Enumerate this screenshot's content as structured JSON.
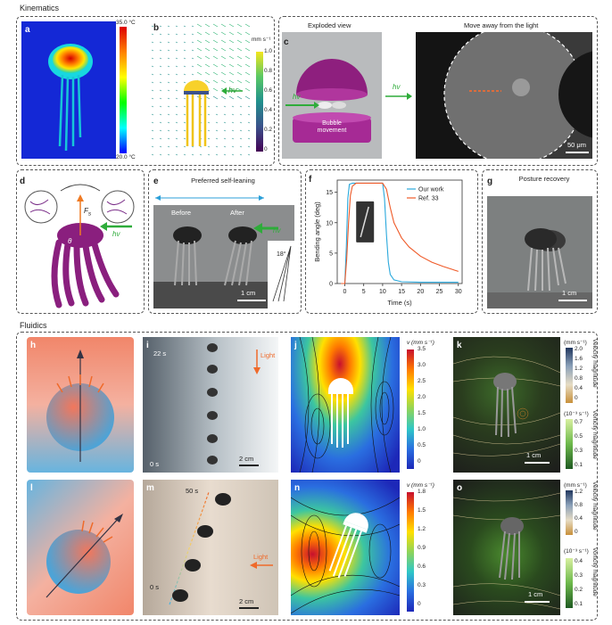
{
  "sections": {
    "kinematics": "Kinematics",
    "fluidics": "Fluidics"
  },
  "panel_letters": {
    "a": "a",
    "b": "b",
    "c": "c",
    "d": "d",
    "e": "e",
    "f": "f",
    "g": "g",
    "h": "h",
    "i": "i",
    "j": "j",
    "k": "k",
    "l": "l",
    "m": "m",
    "n": "n",
    "o": "o"
  },
  "panel_a": {
    "cbar_max": "35.0 °C",
    "cbar_min": "20.0 °C"
  },
  "panel_b": {
    "unit": "mm s⁻¹",
    "ticks": [
      "1.0",
      "0.8",
      "0.6",
      "0.4",
      "0.2",
      "0"
    ],
    "hv": "hv"
  },
  "panel_c": {
    "title_left": "Exploded view",
    "title_right": "Move away from the light",
    "hv_left": "hv",
    "hv_mid": "hv",
    "bubble_label": "Bubble movement",
    "scale": "50 μm"
  },
  "panel_d": {
    "force_label": "F",
    "force_sub": "s",
    "theta": "θ",
    "hv": "hv"
  },
  "panel_e": {
    "title": "Preferred self-leaning",
    "before": "Before",
    "after": "After",
    "hv": "hv",
    "angle": "18°",
    "scale": "1 cm"
  },
  "panel_f": {
    "ylabel": "Bending angle (deg)",
    "xlabel": "Time (s)",
    "legend": [
      "Our work",
      "Ref. 33"
    ]
  },
  "panel_g": {
    "title": "Posture recovery",
    "scale": "1 cm"
  },
  "panel_i": {
    "t_top": "22 s",
    "t_bottom": "0 s",
    "light": "Light",
    "scale": "2 cm"
  },
  "panel_j": {
    "unit": "v (mm s⁻¹)",
    "ticks": [
      "3.5",
      "3.0",
      "2.5",
      "2.0",
      "1.5",
      "1.0",
      "0.5",
      "0"
    ]
  },
  "panel_k": {
    "vel_label": "Velocity magnitude",
    "vel_unit": "(mm s⁻¹)",
    "vel_ticks": [
      "2.0",
      "1.6",
      "1.2",
      "0.8",
      "0.4",
      "0"
    ],
    "vort_label": "Vorticity magnitude",
    "vort_unit": "(10⁻³ s⁻¹)",
    "vort_ticks": [
      "0.7",
      "0.5",
      "0.3",
      "0.1"
    ],
    "scale": "1 cm"
  },
  "panel_m": {
    "t_top": "50 s",
    "t_bottom": "0 s",
    "light": "Light",
    "scale": "2 cm"
  },
  "panel_n": {
    "unit": "v (mm s⁻¹)",
    "ticks": [
      "1.8",
      "1.5",
      "1.2",
      "0.9",
      "0.6",
      "0.3",
      "0"
    ]
  },
  "panel_o": {
    "vel_label": "Velocity magnitude",
    "vel_unit": "(mm s⁻¹)",
    "vel_ticks": [
      "1.2",
      "0.8",
      "0.4",
      "0"
    ],
    "vort_label": "Vorticity magnitude",
    "vort_unit": "(10⁻³ s⁻¹)",
    "vort_ticks": [
      "0.4",
      "0.3",
      "0.2",
      "0.1"
    ],
    "scale": "1 cm"
  },
  "chart_data": {
    "type": "line",
    "title": "",
    "xlabel": "Time (s)",
    "ylabel": "Bending angle (deg)",
    "xlim": [
      -2,
      31
    ],
    "ylim": [
      0,
      17
    ],
    "xticks": [
      0,
      5,
      10,
      15,
      20,
      25,
      30
    ],
    "yticks": [
      0,
      5,
      10,
      15
    ],
    "legend_position": "top-right",
    "series": [
      {
        "name": "Our work",
        "color": "#29a8dc",
        "x": [
          -1,
          0,
          0.4,
          0.8,
          1.2,
          2,
          5,
          9,
          10,
          10.5,
          11,
          11.5,
          12,
          13,
          15,
          20,
          25,
          30
        ],
        "y": [
          0,
          0,
          6,
          14,
          16.3,
          16.5,
          16.5,
          16.5,
          16.5,
          14,
          8,
          3.5,
          1.5,
          0.6,
          0.3,
          0.2,
          0.2,
          0.2
        ]
      },
      {
        "name": "Ref. 33",
        "color": "#ef5a28",
        "x": [
          -1,
          0,
          0.5,
          1,
          1.5,
          2,
          3,
          5,
          9,
          10,
          11,
          12,
          13,
          15,
          17,
          20,
          23,
          26,
          30
        ],
        "y": [
          0,
          0,
          4,
          10,
          14.5,
          16,
          16.5,
          16.5,
          16.5,
          16.5,
          15.5,
          12.5,
          10,
          7.5,
          6,
          4.5,
          3.5,
          2.8,
          2
        ]
      }
    ]
  }
}
